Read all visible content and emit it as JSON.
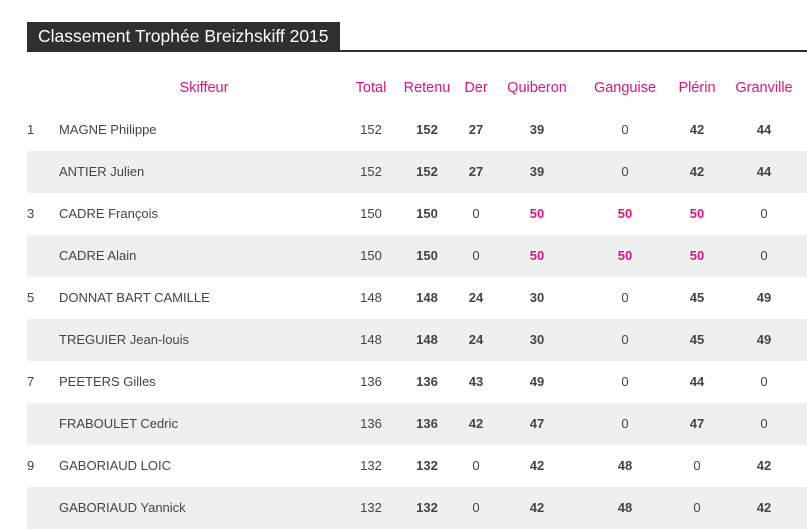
{
  "page_title": "Classement Trophée Breizhskiff 2015",
  "accent_color": "#e0157a",
  "headers": {
    "skiffeur": "Skiffeur",
    "total": "Total",
    "retenu": "Retenu",
    "der": "Der",
    "quiberon": "Quiberon",
    "ganguise": "Ganguise",
    "plerin": "Plérin",
    "granville": "Granville"
  },
  "rows": [
    {
      "rank": "1",
      "name": "MAGNE Philippe",
      "total": "152",
      "retenu": "152",
      "der": "27",
      "quiberon": "39",
      "ganguise": "0",
      "plerin": "42",
      "granville": "44"
    },
    {
      "rank": "",
      "name": "ANTIER Julien",
      "total": "152",
      "retenu": "152",
      "der": "27",
      "quiberon": "39",
      "ganguise": "0",
      "plerin": "42",
      "granville": "44"
    },
    {
      "rank": "3",
      "name": "CADRE François",
      "total": "150",
      "retenu": "150",
      "der": "0",
      "quiberon": "50",
      "ganguise": "50",
      "plerin": "50",
      "granville": "0"
    },
    {
      "rank": "",
      "name": "CADRE Alain",
      "total": "150",
      "retenu": "150",
      "der": "0",
      "quiberon": "50",
      "ganguise": "50",
      "plerin": "50",
      "granville": "0"
    },
    {
      "rank": "5",
      "name": "DONNAT BART CAMILLE",
      "total": "148",
      "retenu": "148",
      "der": "24",
      "quiberon": "30",
      "ganguise": "0",
      "plerin": "45",
      "granville": "49"
    },
    {
      "rank": "",
      "name": "TREGUIER Jean-louis",
      "total": "148",
      "retenu": "148",
      "der": "24",
      "quiberon": "30",
      "ganguise": "0",
      "plerin": "45",
      "granville": "49"
    },
    {
      "rank": "7",
      "name": "PEETERS Gilles",
      "total": "136",
      "retenu": "136",
      "der": "43",
      "quiberon": "49",
      "ganguise": "0",
      "plerin": "44",
      "granville": "0"
    },
    {
      "rank": "",
      "name": "FRABOULET Cedric",
      "total": "136",
      "retenu": "136",
      "der": "42",
      "quiberon": "47",
      "ganguise": "0",
      "plerin": "47",
      "granville": "0"
    },
    {
      "rank": "9",
      "name": "GABORIAUD LOIC",
      "total": "132",
      "retenu": "132",
      "der": "0",
      "quiberon": "42",
      "ganguise": "48",
      "plerin": "0",
      "granville": "42"
    },
    {
      "rank": "",
      "name": "GABORIAUD Yannick",
      "total": "132",
      "retenu": "132",
      "der": "0",
      "quiberon": "42",
      "ganguise": "48",
      "plerin": "0",
      "granville": "42"
    }
  ]
}
